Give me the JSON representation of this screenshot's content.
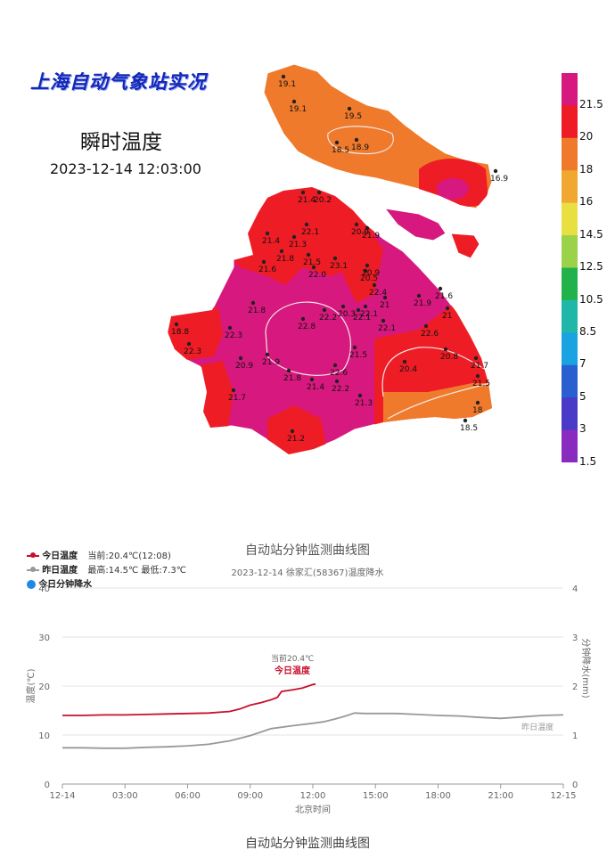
{
  "map": {
    "title": "上海自动气象站实况",
    "subtitle": "瞬时温度",
    "time": "2023-12-14 12:03:00",
    "colorbar": {
      "labels": [
        "21.5",
        "20",
        "18",
        "16",
        "14.5",
        "12.5",
        "10.5",
        "8.5",
        "7",
        "5",
        "3",
        "1.5"
      ],
      "colors": [
        "#d7197f",
        "#ee1c25",
        "#f07a2b",
        "#f0a830",
        "#e8e040",
        "#9bd24a",
        "#22b24c",
        "#1fb8a8",
        "#1aa3e0",
        "#2a5fd0",
        "#4a3ac8",
        "#8a2bc0"
      ]
    },
    "stations": [
      {
        "label": "19.1"
      },
      {
        "label": "19.1"
      },
      {
        "label": "19.5"
      },
      {
        "label": "18.5"
      },
      {
        "label": "18.9"
      },
      {
        "label": "16.9"
      },
      {
        "label": "21.4"
      },
      {
        "label": "20.2"
      },
      {
        "label": "22.1"
      },
      {
        "label": "21.4"
      },
      {
        "label": "21.3"
      },
      {
        "label": "21.8"
      },
      {
        "label": "21.5"
      },
      {
        "label": "21.6"
      },
      {
        "label": "22.0"
      },
      {
        "label": "20.9"
      },
      {
        "label": "23.1"
      },
      {
        "label": "21.9"
      },
      {
        "label": "20.5"
      },
      {
        "label": "22.4"
      },
      {
        "label": "20.9"
      },
      {
        "label": "22.1"
      },
      {
        "label": "20.3"
      },
      {
        "label": "21"
      },
      {
        "label": "22.1"
      },
      {
        "label": "21.9"
      },
      {
        "label": "21.6"
      },
      {
        "label": "21"
      },
      {
        "label": "22.6"
      },
      {
        "label": "20.4"
      },
      {
        "label": "20.8"
      },
      {
        "label": "21.7"
      },
      {
        "label": "21.5"
      },
      {
        "label": "18"
      },
      {
        "label": "18.5"
      },
      {
        "label": "21.8"
      },
      {
        "label": "22.3"
      },
      {
        "label": "22.8"
      },
      {
        "label": "22.2"
      },
      {
        "label": "22.1"
      },
      {
        "label": "21.5"
      },
      {
        "label": "20.9"
      },
      {
        "label": "21.9"
      },
      {
        "label": "21.8"
      },
      {
        "label": "21.4"
      },
      {
        "label": "22.6"
      },
      {
        "label": "22.2"
      },
      {
        "label": "21.3"
      },
      {
        "label": "21.7"
      },
      {
        "label": "21.2"
      },
      {
        "label": "18.8"
      },
      {
        "label": "22.3"
      }
    ]
  },
  "chart": {
    "legend": {
      "today_label": "今日温度",
      "today_info": "当前:20.4℃(12:08)",
      "yesterday_label": "昨日温度",
      "yesterday_info": "最高:14.5℃ 最低:7.3℃",
      "rain_label": "今日分钟降水"
    },
    "title": "自动站分钟监测曲线图",
    "subtitle": "2023-12-14 徐家汇(58367)温度降水",
    "bottom_cut_title": "自动站分钟监测曲线图"
  },
  "chart_data": {
    "type": "line",
    "title": "自动站分钟监测曲线图",
    "subtitle": "2023-12-14 徐家汇(58367)温度降水",
    "xlabel": "北京时间",
    "ylabel": "温度(℃)",
    "y2label": "分钟降水(mm)",
    "x_ticks": [
      "12-14",
      "03:00",
      "06:00",
      "09:00",
      "12:00",
      "15:00",
      "18:00",
      "21:00",
      "12-15"
    ],
    "xlim_hours": [
      0,
      24
    ],
    "ylim": [
      0,
      40
    ],
    "y_ticks": [
      "0",
      "10",
      "20",
      "30",
      "40"
    ],
    "y2lim": [
      0,
      4
    ],
    "y2_ticks": [
      "0",
      "1",
      "2",
      "3",
      "4"
    ],
    "grid": true,
    "legend_position": "top-left",
    "annotations": [
      {
        "text": "当前20.4℃",
        "series": "今日温度"
      },
      {
        "text": "今日温度",
        "series": "今日温度"
      },
      {
        "text": "昨日温度",
        "series": "昨日温度"
      }
    ],
    "series": [
      {
        "name": "今日温度",
        "color": "#c8102e",
        "x_hours": [
          0,
          1,
          2,
          3,
          4,
          5,
          6,
          7,
          8,
          8.5,
          9,
          9.5,
          10,
          10.3,
          10.5,
          11,
          11.5,
          12,
          12.13
        ],
        "values": [
          14.0,
          14.0,
          14.1,
          14.1,
          14.2,
          14.3,
          14.4,
          14.5,
          14.8,
          15.3,
          16.1,
          16.6,
          17.2,
          17.7,
          18.9,
          19.2,
          19.6,
          20.3,
          20.4
        ]
      },
      {
        "name": "昨日温度",
        "color": "#999999",
        "x_hours": [
          0,
          1,
          2,
          3,
          4,
          5,
          6,
          7,
          8,
          9,
          10,
          11,
          12,
          12.5,
          13,
          13.5,
          14,
          14.5,
          15,
          16,
          17,
          18,
          19,
          20,
          21,
          22,
          23,
          24
        ],
        "values": [
          7.4,
          7.4,
          7.3,
          7.3,
          7.5,
          7.6,
          7.8,
          8.1,
          8.8,
          9.9,
          11.3,
          11.9,
          12.4,
          12.7,
          13.2,
          13.8,
          14.5,
          14.4,
          14.4,
          14.4,
          14.2,
          14.0,
          13.9,
          13.6,
          13.4,
          13.7,
          14.0,
          14.1
        ]
      },
      {
        "name": "今日分钟降水",
        "color": "#1e88e5",
        "x_hours": [],
        "values": []
      }
    ]
  }
}
